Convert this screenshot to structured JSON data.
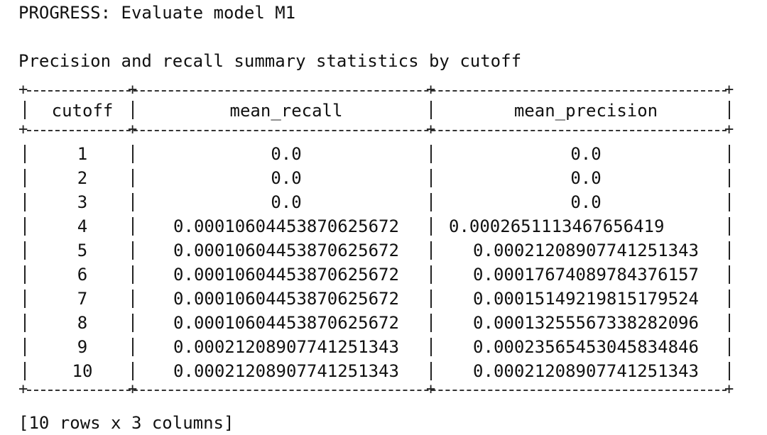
{
  "console": {
    "progress_line": "PROGRESS: Evaluate model M1",
    "summary_title": "Precision and recall summary statistics by cutoff",
    "footer": "[10 rows x 3 columns]"
  },
  "table": {
    "columns": [
      "cutoff",
      "mean_recall",
      "mean_precision"
    ],
    "rows": [
      [
        "1",
        "0.0",
        "0.0"
      ],
      [
        "2",
        "0.0",
        "0.0"
      ],
      [
        "3",
        "0.0",
        "0.0"
      ],
      [
        "4",
        "0.00010604453870625672",
        "0.0002651113467656419"
      ],
      [
        "5",
        "0.00010604453870625672",
        "0.00021208907741251343"
      ],
      [
        "6",
        "0.00010604453870625672",
        "0.00017674089784376157"
      ],
      [
        "7",
        "0.00010604453870625672",
        "0.00015149219815179524"
      ],
      [
        "8",
        "0.00010604453870625672",
        "0.00013255567338282096"
      ],
      [
        "9",
        "0.00021208907741251343",
        "0.00023565453045834846"
      ],
      [
        "10",
        "0.00021208907741251343",
        "0.00021208907741251343"
      ]
    ]
  }
}
